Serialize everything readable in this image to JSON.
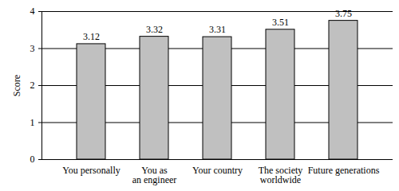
{
  "chart_data": {
    "type": "bar",
    "categories": [
      "You personally",
      "You as an engineer",
      "Your country",
      "The society worldwide",
      "Future generations"
    ],
    "values": [
      3.12,
      3.32,
      3.31,
      3.51,
      3.75
    ],
    "color": "#c0c0c0",
    "y_label": "Score",
    "ylim": [
      0,
      4
    ],
    "yticks": [
      0,
      1,
      2,
      3,
      4
    ],
    "grid": true,
    "data_labels": true
  }
}
